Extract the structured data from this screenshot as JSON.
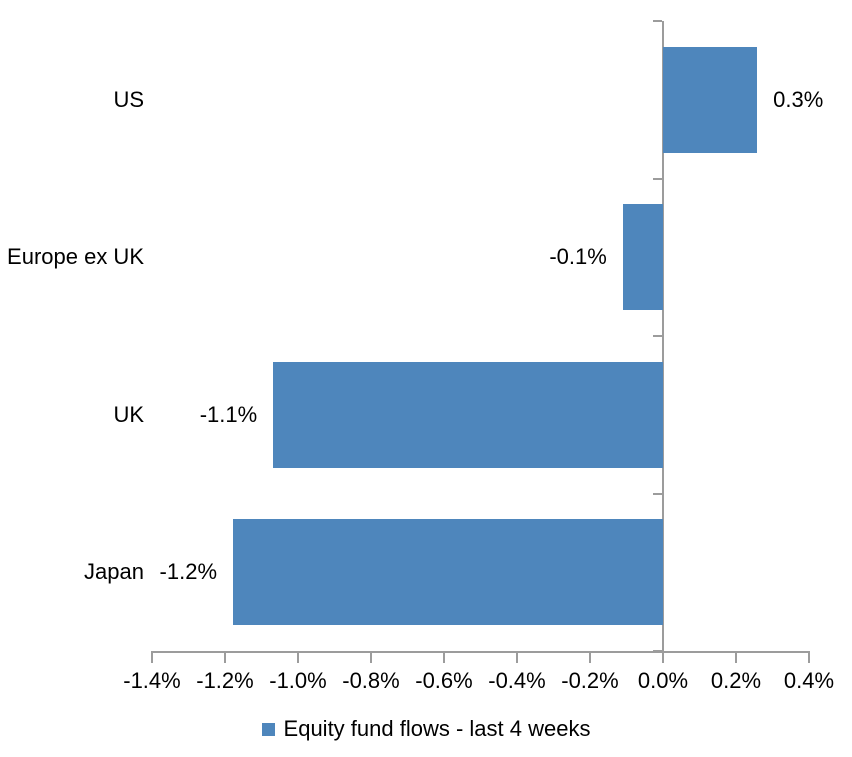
{
  "chart_data": {
    "type": "bar",
    "orientation": "horizontal",
    "title": "",
    "categories": [
      "US",
      "Europe ex UK",
      "UK",
      "Japan"
    ],
    "values": [
      0.3,
      -0.1,
      -1.1,
      -1.2
    ],
    "values_unit": "%",
    "plotted_values": [
      0.258,
      -0.11,
      -1.068,
      -1.178
    ],
    "data_labels": [
      "0.3%",
      "-0.1%",
      "-1.1%",
      "-1.2%"
    ],
    "x_axis": {
      "range": [
        -1.4,
        0.4
      ],
      "tick_values": [
        -1.4,
        -1.2,
        -1.0,
        -0.8,
        -0.6,
        -0.4,
        -0.2,
        0.0,
        0.2,
        0.4
      ],
      "tick_labels": [
        "-1.4%",
        "-1.2%",
        "-1.0%",
        "-0.8%",
        "-0.6%",
        "-0.4%",
        "-0.2%",
        "0.0%",
        "0.2%",
        "0.4%"
      ]
    },
    "grid": false,
    "legend": {
      "position": "bottom",
      "entries": [
        "Equity fund flows - last 4 weeks"
      ]
    },
    "colors": {
      "bar": "#4E86BC",
      "axis": "#9C9C9C",
      "text": "#000000",
      "background": "#FFFFFF"
    }
  }
}
